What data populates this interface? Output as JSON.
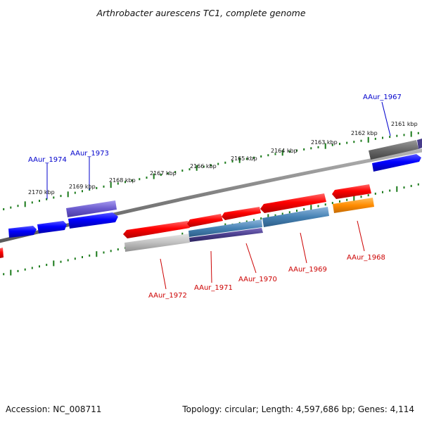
{
  "title": "Arthrobacter aurescens TC1, complete genome",
  "footer": {
    "accession": "Accession: NC_008711",
    "topology": "Topology: circular; Length: 4,597,686 bp; Genes: 4,114"
  },
  "ticks": {
    "top": [
      "2170 kbp",
      "2169 kbp",
      "2168 kbp",
      "2167 kbp",
      "2166 kbp",
      "2165 kbp",
      "2164 kbp",
      "2163 kbp",
      "2162 kbp",
      "2161 kbp"
    ]
  },
  "genes": {
    "top": [
      "AAur_1974",
      "AAur_1973",
      "AAur_1967"
    ],
    "bottom": [
      "AAur_1972",
      "AAur_1971",
      "AAur_1970",
      "AAur_1969",
      "AAur_1968"
    ]
  },
  "colors": {
    "forward_label": "#0000cc",
    "reverse_label": "#cc0000",
    "tick": "#1a7a1a",
    "backbone": "#808080"
  }
}
